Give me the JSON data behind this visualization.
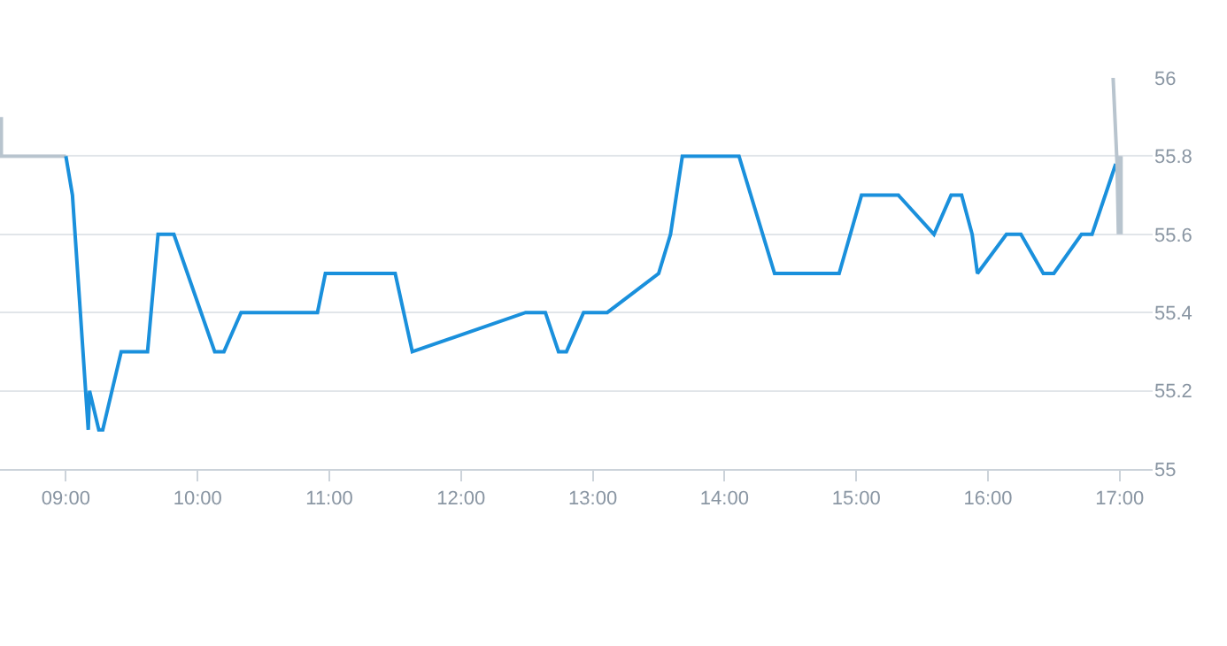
{
  "chart_data": {
    "type": "line",
    "series": [
      {
        "color": "#b8c4ce",
        "x": [
          8.51,
          8.51,
          9.0
        ],
        "values": [
          55.9,
          55.8,
          55.8
        ]
      },
      {
        "color": "#1a90dc",
        "x": [
          9.0,
          9.05,
          9.17,
          9.18,
          9.25,
          9.28,
          9.42,
          9.62,
          9.7,
          9.82,
          10.13,
          10.2,
          10.33,
          10.91,
          10.97,
          11.5,
          11.63,
          12.49,
          12.64,
          12.74,
          12.8,
          12.93,
          13.11,
          13.5,
          13.59,
          13.68,
          14.11,
          14.38,
          14.87,
          15.04,
          15.32,
          15.59,
          15.72,
          15.8,
          15.88,
          15.92,
          16.14,
          16.25,
          16.42,
          16.5,
          16.71,
          16.79,
          16.97
        ],
        "values": [
          55.8,
          55.7,
          55.1,
          55.2,
          55.1,
          55.1,
          55.3,
          55.3,
          55.6,
          55.6,
          55.3,
          55.3,
          55.4,
          55.4,
          55.5,
          55.5,
          55.3,
          55.4,
          55.4,
          55.3,
          55.3,
          55.4,
          55.4,
          55.5,
          55.6,
          55.8,
          55.8,
          55.5,
          55.5,
          55.7,
          55.7,
          55.6,
          55.7,
          55.7,
          55.6,
          55.5,
          55.6,
          55.6,
          55.5,
          55.5,
          55.6,
          55.6,
          55.78
        ]
      },
      {
        "color": "#b8c4ce",
        "x": [
          16.95,
          16.98,
          16.99,
          17.0,
          17.01,
          17.01
        ],
        "values": [
          56.0,
          55.78,
          55.6,
          55.8,
          55.6,
          55.8
        ]
      }
    ],
    "xlim": [
      8.5,
      17.25
    ],
    "xticks": [
      {
        "value": 9,
        "label": "09:00"
      },
      {
        "value": 10,
        "label": "10:00"
      },
      {
        "value": 11,
        "label": "11:00"
      },
      {
        "value": 12,
        "label": "12:00"
      },
      {
        "value": 13,
        "label": "13:00"
      },
      {
        "value": 14,
        "label": "14:00"
      },
      {
        "value": 15,
        "label": "15:00"
      },
      {
        "value": 16,
        "label": "16:00"
      },
      {
        "value": 17,
        "label": "17:00"
      }
    ],
    "ylim": [
      55,
      56
    ],
    "yticks": [
      55,
      55.2,
      55.4,
      55.6,
      55.8,
      56
    ],
    "grid": "y",
    "marker": "none",
    "line_style": "solid"
  }
}
